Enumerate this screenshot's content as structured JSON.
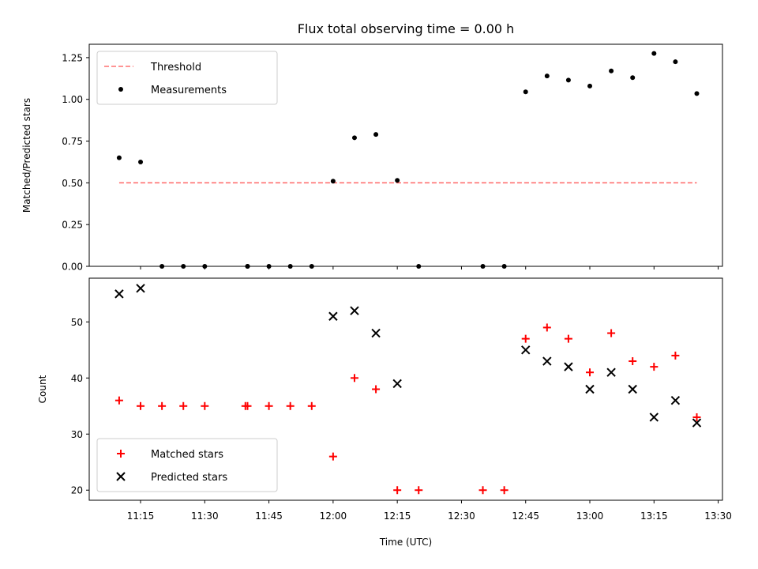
{
  "title": "Flux total observing time = 0.00 h",
  "colors": {
    "threshold": "#ff7070",
    "measurements": "#000000",
    "matched": "#ff0000",
    "predicted": "#000000"
  },
  "chart_data": [
    {
      "type": "scatter",
      "name": "ratio-panel",
      "ylabel": "Matched/Predicted stars",
      "ylim": [
        0,
        1.33
      ],
      "yticks": [
        "0.00",
        "0.25",
        "0.50",
        "0.75",
        "1.00",
        "1.25"
      ],
      "ytick_values": [
        0,
        0.25,
        0.5,
        0.75,
        1.0,
        1.25
      ],
      "xlim": [
        "11:03",
        "13:31"
      ],
      "legend": {
        "placement": "top-left",
        "entries": [
          "Threshold",
          "Measurements"
        ]
      },
      "threshold": {
        "name": "Threshold",
        "value": 0.5,
        "x_start": "11:10",
        "x_end": "13:25",
        "style": "dashed"
      },
      "series": [
        {
          "name": "Measurements",
          "marker": "dot",
          "points": [
            {
              "x": "11:10",
              "y": 0.65
            },
            {
              "x": "11:15",
              "y": 0.625
            },
            {
              "x": "11:20",
              "y": 0.0
            },
            {
              "x": "11:25",
              "y": 0.0
            },
            {
              "x": "11:30",
              "y": 0.0
            },
            {
              "x": "11:40",
              "y": 0.0
            },
            {
              "x": "11:40",
              "y": 0.0
            },
            {
              "x": "11:45",
              "y": 0.0
            },
            {
              "x": "11:50",
              "y": 0.0
            },
            {
              "x": "11:55",
              "y": 0.0
            },
            {
              "x": "12:00",
              "y": 0.51
            },
            {
              "x": "12:05",
              "y": 0.77
            },
            {
              "x": "12:10",
              "y": 0.79
            },
            {
              "x": "12:15",
              "y": 0.515
            },
            {
              "x": "12:20",
              "y": 0.0
            },
            {
              "x": "12:35",
              "y": 0.0
            },
            {
              "x": "12:40",
              "y": 0.0
            },
            {
              "x": "12:45",
              "y": 1.045
            },
            {
              "x": "12:50",
              "y": 1.14
            },
            {
              "x": "12:55",
              "y": 1.115
            },
            {
              "x": "13:00",
              "y": 1.08
            },
            {
              "x": "13:05",
              "y": 1.17
            },
            {
              "x": "13:10",
              "y": 1.13
            },
            {
              "x": "13:15",
              "y": 1.275
            },
            {
              "x": "13:20",
              "y": 1.225
            },
            {
              "x": "13:25",
              "y": 1.035
            }
          ]
        }
      ]
    },
    {
      "type": "scatter",
      "name": "count-panel",
      "xlabel": "Time (UTC)",
      "ylabel": "Count",
      "ylim": [
        18.2,
        57.8
      ],
      "yticks": [
        "20",
        "30",
        "40",
        "50"
      ],
      "ytick_values": [
        20,
        30,
        40,
        50
      ],
      "xlim": [
        "11:03",
        "13:31"
      ],
      "xticks": [
        "11:15",
        "11:30",
        "11:45",
        "12:00",
        "12:15",
        "12:30",
        "12:45",
        "13:00",
        "13:15",
        "13:30"
      ],
      "legend": {
        "placement": "bottom-left",
        "entries": [
          "Matched stars",
          "Predicted stars"
        ]
      },
      "series": [
        {
          "name": "Matched stars",
          "marker": "plus",
          "points": [
            {
              "x": "11:10",
              "y": 36
            },
            {
              "x": "11:15",
              "y": 35
            },
            {
              "x": "11:20",
              "y": 35
            },
            {
              "x": "11:25",
              "y": 35
            },
            {
              "x": "11:30",
              "y": 35
            },
            {
              "x": "11:39.5",
              "y": 35
            },
            {
              "x": "11:40",
              "y": 35
            },
            {
              "x": "11:45",
              "y": 35
            },
            {
              "x": "11:50",
              "y": 35
            },
            {
              "x": "11:55",
              "y": 35
            },
            {
              "x": "12:00",
              "y": 26
            },
            {
              "x": "12:05",
              "y": 40
            },
            {
              "x": "12:10",
              "y": 38
            },
            {
              "x": "12:15",
              "y": 20
            },
            {
              "x": "12:20",
              "y": 20
            },
            {
              "x": "12:35",
              "y": 20
            },
            {
              "x": "12:40",
              "y": 20
            },
            {
              "x": "12:45",
              "y": 47
            },
            {
              "x": "12:50",
              "y": 49
            },
            {
              "x": "12:55",
              "y": 47
            },
            {
              "x": "13:00",
              "y": 41
            },
            {
              "x": "13:05",
              "y": 48
            },
            {
              "x": "13:10",
              "y": 43
            },
            {
              "x": "13:15",
              "y": 42
            },
            {
              "x": "13:20",
              "y": 44
            },
            {
              "x": "13:25",
              "y": 33
            }
          ]
        },
        {
          "name": "Predicted stars",
          "marker": "x",
          "points": [
            {
              "x": "11:10",
              "y": 55
            },
            {
              "x": "11:15",
              "y": 56
            },
            {
              "x": "12:00",
              "y": 51
            },
            {
              "x": "12:05",
              "y": 52
            },
            {
              "x": "12:10",
              "y": 48
            },
            {
              "x": "12:15",
              "y": 39
            },
            {
              "x": "12:45",
              "y": 45
            },
            {
              "x": "12:50",
              "y": 43
            },
            {
              "x": "12:55",
              "y": 42
            },
            {
              "x": "13:00",
              "y": 38
            },
            {
              "x": "13:05",
              "y": 41
            },
            {
              "x": "13:10",
              "y": 38
            },
            {
              "x": "13:15",
              "y": 33
            },
            {
              "x": "13:20",
              "y": 36
            },
            {
              "x": "13:25",
              "y": 32
            }
          ]
        }
      ]
    }
  ]
}
